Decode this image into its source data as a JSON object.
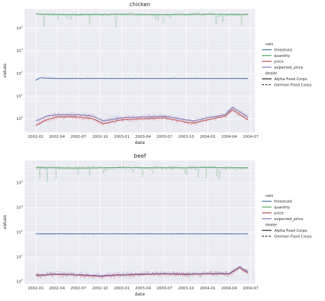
{
  "figure": {
    "legend": {
      "hue_title": "cats",
      "style_title": "dealer",
      "placement": "right",
      "entries": [
        {
          "label": "threshold",
          "color": "#4c72b0",
          "dash": "solid"
        },
        {
          "label": "quantity",
          "color": "#55a868",
          "dash": "solid"
        },
        {
          "label": "price",
          "color": "#c44e52",
          "dash": "solid"
        },
        {
          "label": "expected_price",
          "color": "#8172b2",
          "dash": "solid"
        }
      ],
      "style_entries": [
        {
          "label": "Alpha Food Corps",
          "dash": "solid"
        },
        {
          "label": "German Food Corps",
          "dash": "dashed"
        }
      ]
    }
  },
  "chart_data": [
    {
      "type": "line",
      "title": "chicken",
      "xlabel": "date",
      "ylabel": "values",
      "yscale": "log",
      "grid": true,
      "background": "#eaeaf2",
      "xlim": [
        "2001-11-15",
        "2004-07-20"
      ],
      "ylim_exp": [
        -0.6,
        4.85
      ],
      "xticks": [
        "2002-01",
        "2002-04",
        "2002-07",
        "2002-10",
        "2003-01",
        "2003-04",
        "2003-07",
        "2003-10",
        "2004-01",
        "2004-04",
        "2004-07"
      ],
      "yticks": [
        {
          "base": "10",
          "exp": "0"
        },
        {
          "base": "10",
          "exp": "1"
        },
        {
          "base": "10",
          "exp": "2"
        },
        {
          "base": "10",
          "exp": "3"
        },
        {
          "base": "10",
          "exp": "4"
        }
      ],
      "series": [
        {
          "name": "quantity",
          "color": "#55a868",
          "x": [
            "2002-01-01",
            "2002-04-01",
            "2002-07-01",
            "2002-10-01",
            "2003-01-01",
            "2003-04-01",
            "2003-07-01",
            "2003-10-01",
            "2004-01-01",
            "2004-04-01",
            "2004-06-20"
          ],
          "y": [
            42000,
            40000,
            39000,
            40000,
            41000,
            40000,
            39000,
            40000,
            41000,
            40000,
            40000
          ]
        },
        {
          "name": "threshold",
          "color": "#4c72b0",
          "x": [
            "2002-01-01",
            "2002-01-20",
            "2002-02-10",
            "2002-04-01",
            "2002-07-01",
            "2002-10-01",
            "2003-01-01",
            "2003-04-01",
            "2003-07-01",
            "2003-10-01",
            "2004-01-01",
            "2004-04-01",
            "2004-06-20"
          ],
          "y": [
            50,
            65,
            62,
            60,
            60,
            60,
            60,
            60,
            60,
            60,
            60,
            60,
            60
          ]
        },
        {
          "name": "price",
          "color": "#c44e52",
          "x": [
            "2002-01-01",
            "2002-02-15",
            "2002-04-01",
            "2002-07-01",
            "2002-09-01",
            "2002-10-15",
            "2003-01-01",
            "2003-04-01",
            "2003-07-01",
            "2003-10-01",
            "2003-11-01",
            "2004-01-01",
            "2004-03-15",
            "2004-04-15",
            "2004-06-20"
          ],
          "y": [
            0.5,
            0.9,
            1.2,
            1.2,
            1.0,
            0.6,
            0.9,
            1.0,
            1.1,
            0.7,
            0.65,
            0.9,
            1.3,
            2.5,
            0.9
          ]
        },
        {
          "name": "expected_price",
          "color": "#8172b2",
          "x": [
            "2002-01-01",
            "2002-02-15",
            "2002-04-01",
            "2002-07-01",
            "2002-09-01",
            "2002-10-15",
            "2003-01-01",
            "2003-04-01",
            "2003-07-01",
            "2003-10-01",
            "2003-11-01",
            "2004-01-01",
            "2004-03-15",
            "2004-04-15",
            "2004-06-20"
          ],
          "y": [
            0.8,
            1.3,
            1.5,
            1.5,
            1.3,
            0.8,
            1.1,
            1.2,
            1.3,
            0.9,
            0.8,
            1.1,
            1.5,
            3.2,
            1.2
          ]
        }
      ]
    },
    {
      "type": "line",
      "title": "beef",
      "xlabel": "date",
      "ylabel": "values",
      "yscale": "log",
      "grid": true,
      "background": "#eaeaf2",
      "xlim": [
        "2001-11-15",
        "2004-07-20"
      ],
      "ylim_exp": [
        -0.1,
        4.9
      ],
      "xticks": [
        "2002-01",
        "2002-04",
        "2002-07",
        "2002-10",
        "2003-01",
        "2003-04",
        "2003-07",
        "2003-10",
        "2004-01",
        "2004-04",
        "2004-07"
      ],
      "yticks": [
        {
          "base": "10",
          "exp": "0"
        },
        {
          "base": "10",
          "exp": "1"
        },
        {
          "base": "10",
          "exp": "2"
        },
        {
          "base": "10",
          "exp": "3"
        },
        {
          "base": "10",
          "exp": "4"
        }
      ],
      "series": [
        {
          "name": "quantity",
          "color": "#55a868",
          "x": [
            "2002-01-01",
            "2002-04-01",
            "2002-07-01",
            "2002-10-01",
            "2003-01-01",
            "2003-04-01",
            "2003-07-01",
            "2003-10-01",
            "2004-01-01",
            "2004-04-01",
            "2004-06-20"
          ],
          "y": [
            40000,
            40000,
            39000,
            40000,
            41000,
            40000,
            40000,
            40000,
            41000,
            40000,
            40000
          ]
        },
        {
          "name": "threshold",
          "color": "#4c72b0",
          "x": [
            "2002-01-01",
            "2002-07-01",
            "2003-01-01",
            "2003-07-01",
            "2004-01-01",
            "2004-06-20"
          ],
          "y": [
            85,
            85,
            85,
            85,
            85,
            85
          ]
        },
        {
          "name": "price",
          "color": "#c44e52",
          "x": [
            "2002-01-01",
            "2002-04-01",
            "2002-07-01",
            "2002-10-01",
            "2003-01-01",
            "2003-04-01",
            "2003-07-01",
            "2003-10-01",
            "2004-01-01",
            "2004-04-01",
            "2004-05-15",
            "2004-06-20"
          ],
          "y": [
            1.7,
            1.9,
            1.8,
            1.6,
            1.8,
            1.9,
            2.0,
            1.9,
            2.0,
            2.0,
            3.5,
            2.2
          ]
        },
        {
          "name": "expected_price",
          "color": "#8172b2",
          "x": [
            "2002-01-01",
            "2002-04-01",
            "2002-07-01",
            "2002-10-01",
            "2003-01-01",
            "2003-04-01",
            "2003-07-01",
            "2003-10-01",
            "2004-01-01",
            "2004-04-01",
            "2004-05-15",
            "2004-06-20"
          ],
          "y": [
            1.8,
            2.0,
            1.9,
            1.7,
            1.9,
            2.0,
            2.1,
            2.0,
            2.1,
            2.1,
            4.0,
            2.4
          ]
        }
      ]
    }
  ]
}
